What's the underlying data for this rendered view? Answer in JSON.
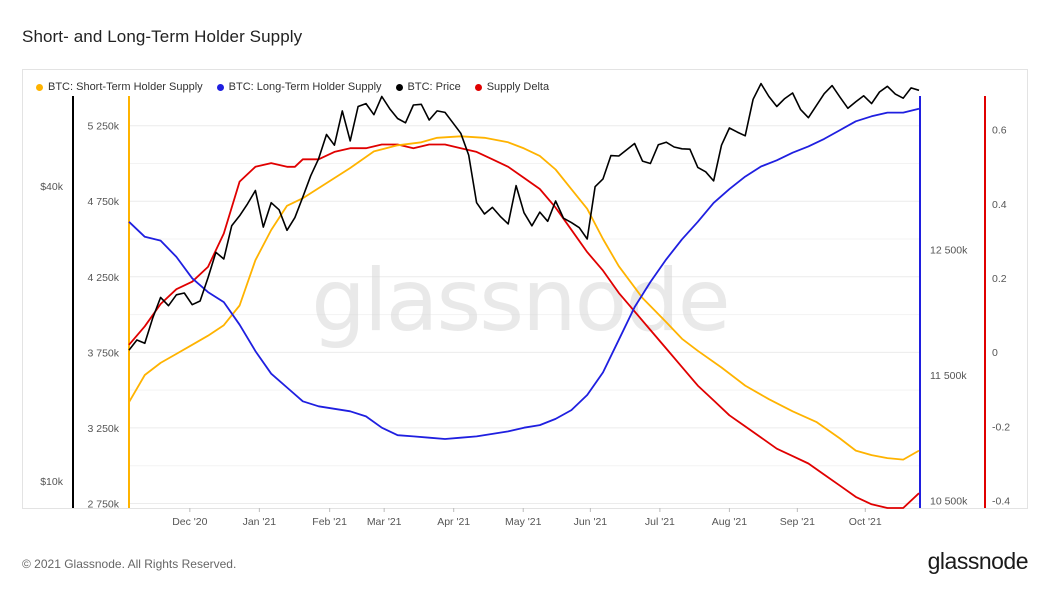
{
  "title": "Short- and Long-Term Holder Supply",
  "footer": "© 2021 Glassnode. All Rights Reserved.",
  "brand": "glassnode",
  "watermark": "glassnode",
  "colors": {
    "sth": "#ffb300",
    "lth": "#1f1fe0",
    "price": "#000000",
    "delta": "#e00000",
    "grid": "#ececec",
    "tick": "#555555"
  },
  "legend": [
    {
      "label": "BTC: Short-Term Holder Supply",
      "color": "#ffb300"
    },
    {
      "label": "BTC: Long-Term Holder Supply",
      "color": "#1f1fe0"
    },
    {
      "label": "BTC: Price",
      "color": "#000000"
    },
    {
      "label": "Supply Delta",
      "color": "#e00000"
    }
  ],
  "chart_data": {
    "type": "line",
    "title": "Short- and Long-Term Holder Supply",
    "x_ticks": [
      "Dec '20",
      "Jan '21",
      "Feb '21",
      "Mar '21",
      "Apr '21",
      "May '21",
      "Jun '21",
      "Jul '21",
      "Aug '21",
      "Sep '21",
      "Oct '21"
    ],
    "x_range": [
      0,
      100
    ],
    "x_tick_positions": [
      7.7,
      16.5,
      25.4,
      32.3,
      41.1,
      49.9,
      58.4,
      67.2,
      76.0,
      84.6,
      93.2
    ],
    "axes": {
      "sth_supply": {
        "label": "",
        "ticks": [
          "5 250k",
          "4 750k",
          "4 250k",
          "3 750k",
          "3 250k",
          "2 750k"
        ],
        "tick_values": [
          5250,
          4750,
          4250,
          3750,
          3250,
          2750
        ],
        "range": [
          2720,
          5420
        ]
      },
      "price": {
        "label": "",
        "ticks": [
          "$40k",
          "$10k"
        ],
        "tick_values": [
          40000,
          10000
        ],
        "scale": "log",
        "range": [
          8800,
          60000
        ]
      },
      "lth_supply": {
        "label": "",
        "ticks": [
          "12 500k",
          "11 500k",
          "10 500k"
        ],
        "tick_values": [
          12500,
          11500,
          10500
        ],
        "range": [
          10440,
          13690
        ]
      },
      "supply_delta": {
        "label": "",
        "ticks": [
          "0.6",
          "0.4",
          "0.2",
          "0",
          "-0.2",
          "-0.4"
        ],
        "tick_values": [
          0.6,
          0.4,
          0.2,
          0,
          -0.2,
          -0.4
        ],
        "range": [
          -0.42,
          0.68
        ]
      }
    },
    "series": [
      {
        "name": "BTC: Short-Term Holder Supply",
        "axis": "sth_supply",
        "x": [
          0,
          2,
          4,
          6,
          8,
          10,
          12,
          14,
          16,
          18,
          20,
          22,
          25,
          28,
          31,
          34,
          37,
          39,
          42,
          45,
          48,
          50,
          52,
          54,
          56,
          58,
          60,
          62,
          65,
          68,
          70,
          72,
          75,
          78,
          81,
          84,
          87,
          90,
          92,
          94,
          96,
          98,
          100
        ],
        "values": [
          3420,
          3600,
          3680,
          3740,
          3800,
          3860,
          3930,
          4060,
          4360,
          4560,
          4720,
          4770,
          4870,
          4970,
          5080,
          5120,
          5140,
          5170,
          5180,
          5170,
          5140,
          5100,
          5050,
          4960,
          4830,
          4700,
          4500,
          4320,
          4110,
          3950,
          3840,
          3760,
          3650,
          3530,
          3440,
          3360,
          3290,
          3180,
          3100,
          3070,
          3050,
          3040,
          3100
        ]
      },
      {
        "name": "BTC: Long-Term Holder Supply",
        "axis": "lth_supply",
        "x": [
          0,
          2,
          4,
          6,
          8,
          10,
          12,
          14,
          16,
          18,
          20,
          22,
          24,
          26,
          28,
          30,
          32,
          34,
          36,
          38,
          40,
          42,
          44,
          46,
          48,
          50,
          52,
          54,
          56,
          58,
          60,
          62,
          64,
          66,
          68,
          70,
          72,
          74,
          76,
          78,
          80,
          82,
          84,
          86,
          88,
          90,
          92,
          94,
          96,
          98,
          100
        ],
        "values": [
          12720,
          12600,
          12570,
          12440,
          12270,
          12160,
          12080,
          11900,
          11690,
          11510,
          11400,
          11290,
          11250,
          11230,
          11210,
          11170,
          11080,
          11020,
          11010,
          11000,
          10990,
          11000,
          11010,
          11030,
          11050,
          11080,
          11100,
          11150,
          11220,
          11340,
          11520,
          11780,
          12040,
          12240,
          12420,
          12580,
          12720,
          12870,
          12980,
          13080,
          13160,
          13210,
          13270,
          13320,
          13380,
          13450,
          13520,
          13560,
          13590,
          13590,
          13620
        ]
      },
      {
        "name": "BTC: Price",
        "axis": "price",
        "x": [
          0,
          1,
          2,
          3,
          4,
          5,
          6,
          7,
          8,
          9,
          10,
          11,
          12,
          13,
          14,
          15,
          16,
          17,
          18,
          19,
          20,
          21,
          22,
          23,
          24,
          25,
          26,
          27,
          28,
          29,
          30,
          31,
          32,
          33,
          34,
          35,
          36,
          37,
          38,
          39,
          40,
          41,
          42,
          43,
          44,
          45,
          46,
          47,
          48,
          49,
          50,
          51,
          52,
          53,
          54,
          55,
          56,
          57,
          58,
          59,
          60,
          61,
          62,
          63,
          64,
          65,
          66,
          67,
          68,
          69,
          70,
          71,
          72,
          73,
          74,
          75,
          76,
          77,
          78,
          79,
          80,
          81,
          82,
          83,
          84,
          85,
          86,
          87,
          88,
          89,
          90,
          91,
          92,
          93,
          94,
          95,
          96,
          97,
          98,
          99,
          100
        ],
        "values": [
          18500,
          19400,
          19100,
          21500,
          23700,
          22800,
          24000,
          24200,
          22900,
          23300,
          26000,
          29300,
          28400,
          33200,
          34800,
          36800,
          39200,
          33000,
          37000,
          35800,
          32500,
          34500,
          38000,
          42000,
          45500,
          51000,
          48500,
          57000,
          49500,
          58200,
          59000,
          56000,
          61000,
          57600,
          55000,
          53900,
          58600,
          58800,
          54600,
          57000,
          56600,
          53900,
          51300,
          46300,
          37000,
          35100,
          36200,
          34700,
          33500,
          40100,
          35300,
          33200,
          35400,
          33900,
          37300,
          34400,
          33700,
          32900,
          31200,
          39900,
          41400,
          46200,
          46100,
          47500,
          48900,
          45000,
          44500,
          48600,
          49200,
          48100,
          47700,
          47600,
          43700,
          42800,
          41000,
          48500,
          52600,
          51600,
          50700,
          60200,
          64800,
          61000,
          58200,
          60400,
          62000,
          57400,
          55200,
          58400,
          61800,
          64200,
          60800,
          57700,
          59500,
          61200,
          59000,
          62300,
          64000,
          61700,
          60500,
          63500,
          62800
        ]
      },
      {
        "name": "Supply Delta",
        "axis": "supply_delta",
        "x": [
          0,
          2,
          4,
          6,
          8,
          10,
          12,
          14,
          16,
          18,
          20,
          21,
          22,
          24,
          26,
          28,
          30,
          32,
          34,
          36,
          38,
          40,
          42,
          44,
          46,
          48,
          50,
          52,
          54,
          56,
          58,
          60,
          62,
          64,
          66,
          68,
          70,
          72,
          74,
          76,
          78,
          80,
          82,
          84,
          86,
          88,
          90,
          92,
          94,
          96,
          98,
          100
        ],
        "values": [
          0.02,
          0.07,
          0.13,
          0.17,
          0.19,
          0.23,
          0.32,
          0.46,
          0.5,
          0.51,
          0.5,
          0.5,
          0.52,
          0.52,
          0.54,
          0.55,
          0.55,
          0.56,
          0.56,
          0.55,
          0.56,
          0.56,
          0.55,
          0.54,
          0.52,
          0.5,
          0.47,
          0.44,
          0.39,
          0.33,
          0.27,
          0.22,
          0.16,
          0.11,
          0.06,
          0.01,
          -0.04,
          -0.09,
          -0.13,
          -0.17,
          -0.2,
          -0.23,
          -0.26,
          -0.28,
          -0.3,
          -0.33,
          -0.36,
          -0.39,
          -0.41,
          -0.42,
          -0.42,
          -0.38
        ]
      }
    ]
  }
}
